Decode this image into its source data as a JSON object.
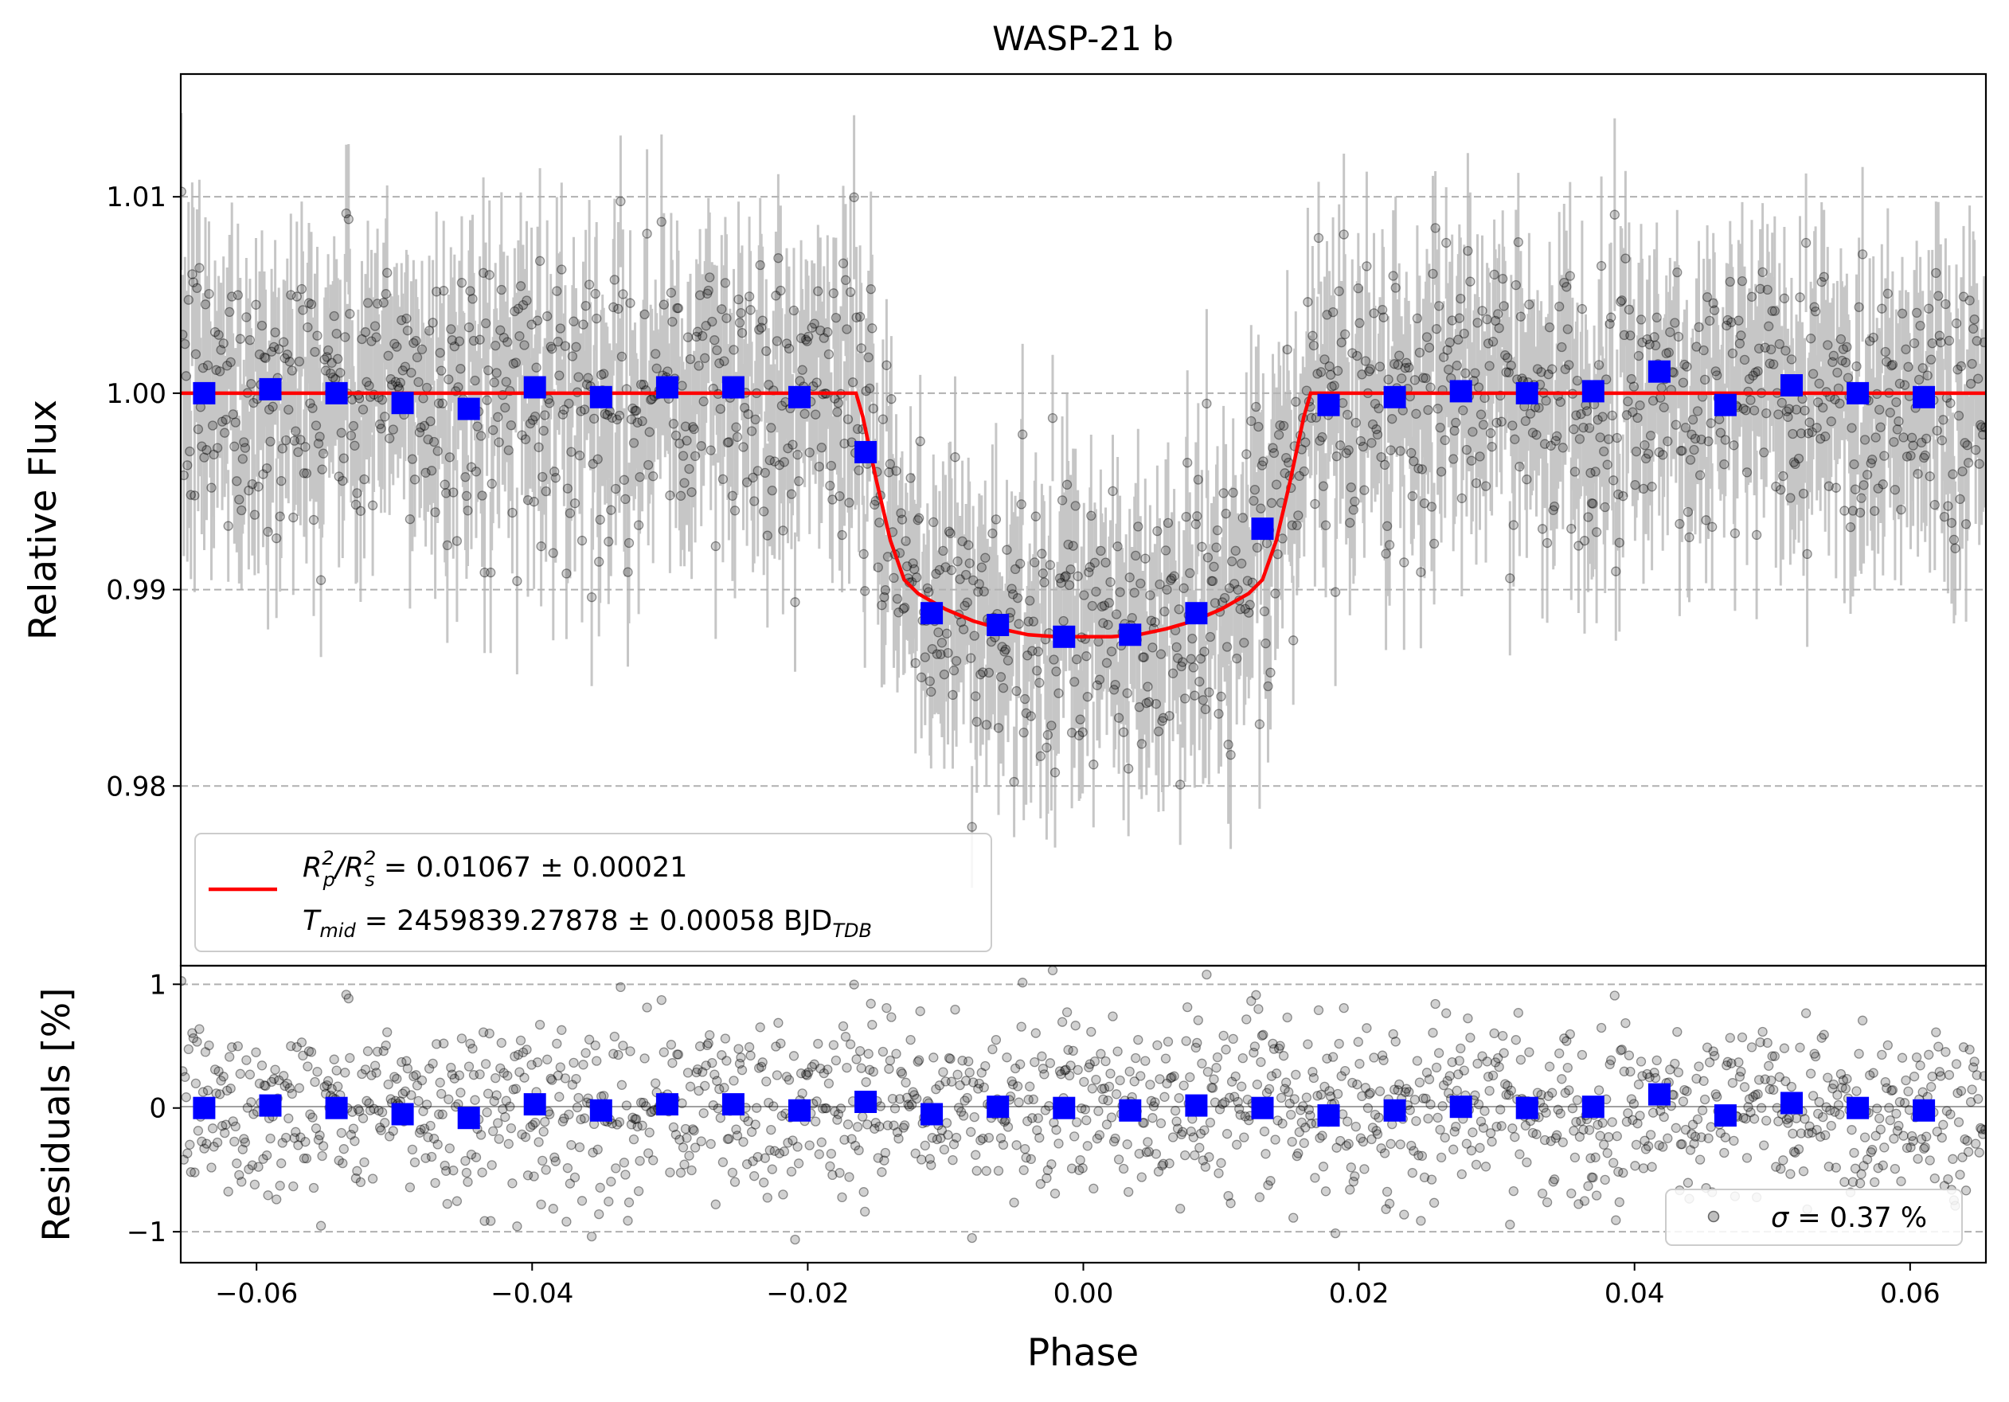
{
  "chart_data": [
    {
      "type": "scatter",
      "panel": "light-curve",
      "title": "WASP-21 b",
      "xlabel": "",
      "ylabel": "Relative Flux",
      "xlim": [
        -0.0655,
        0.0655
      ],
      "ylim": [
        0.97085,
        1.01625
      ],
      "yticks": [
        0.98,
        0.99,
        1.0,
        1.01
      ],
      "ytick_labels": [
        "0.98",
        "0.99",
        "1.00",
        "1.01"
      ],
      "grid": "horizontal dashed",
      "raw_data_note": "about 1500 grey points with 1-sigma error bars, scatter about 0.37% around the model",
      "binned": {
        "x": [
          -0.0638,
          -0.059,
          -0.0542,
          -0.0494,
          -0.0446,
          -0.0398,
          -0.035,
          -0.0302,
          -0.0254,
          -0.0206,
          -0.0158,
          -0.011,
          -0.0062,
          -0.0014,
          0.0034,
          0.0082,
          0.013,
          0.0178,
          0.0226,
          0.0274,
          0.0322,
          0.037,
          0.0418,
          0.0466,
          0.0514,
          0.0562,
          0.061
        ],
        "y": [
          1.0,
          1.0002,
          1.0,
          0.9995,
          0.9992,
          1.0003,
          0.9998,
          1.0003,
          1.0003,
          0.9998,
          0.997,
          0.9888,
          0.9882,
          0.9876,
          0.9877,
          0.9888,
          0.9931,
          0.9994,
          0.9998,
          1.0001,
          1.0,
          1.0001,
          1.0011,
          0.9994,
          1.0004,
          1.0,
          0.9998
        ]
      },
      "model": {
        "x": [
          -0.0655,
          -0.0165,
          -0.016,
          -0.015,
          -0.014,
          -0.013,
          -0.012,
          -0.01,
          -0.008,
          -0.006,
          -0.004,
          -0.002,
          0.0,
          0.002,
          0.004,
          0.006,
          0.008,
          0.01,
          0.012,
          0.013,
          0.014,
          0.015,
          0.016,
          0.0165,
          0.0655
        ],
        "y": [
          1.0,
          1.0,
          0.9988,
          0.9955,
          0.9925,
          0.9905,
          0.9898,
          0.989,
          0.9884,
          0.988,
          0.9877,
          0.9876,
          0.9876,
          0.9876,
          0.9877,
          0.988,
          0.9884,
          0.989,
          0.9898,
          0.9905,
          0.9925,
          0.9955,
          0.9988,
          1.0,
          1.0
        ]
      },
      "legend": {
        "placement": "lower-left",
        "line1_main": "R",
        "line1_sub1": "p",
        "line1_sup1": "2",
        "line1_slash": "/R",
        "line1_sub2": "s",
        "line1_sup2": "2",
        "line1_value": " = 0.01067 ± 0.00021",
        "line2_main": "T",
        "line2_sub": "mid",
        "line2_value": " = 2459839.27878 ± 0.00058 BJD",
        "line2_unit_sub": "TDB"
      },
      "colors": {
        "raw": "#000000",
        "errorbar": "#b3b3b3",
        "binned": "#0000ff",
        "model": "#ff0000",
        "grid": "#b0b0b0"
      }
    },
    {
      "type": "scatter",
      "panel": "residuals",
      "xlabel": "Phase",
      "ylabel": "Residuals [%]",
      "xlim": [
        -0.0655,
        0.0655
      ],
      "ylim": [
        -1.25,
        1.15
      ],
      "xticks": [
        -0.06,
        -0.04,
        -0.02,
        0.0,
        0.02,
        0.04,
        0.06
      ],
      "xtick_labels": [
        "−0.06",
        "−0.04",
        "−0.02",
        "0.00",
        "0.02",
        "0.04",
        "0.06"
      ],
      "yticks": [
        -1,
        0,
        1
      ],
      "ytick_labels": [
        "−1",
        "0",
        "1"
      ],
      "grid": "horizontal dashed",
      "binned": {
        "x": [
          -0.0638,
          -0.059,
          -0.0542,
          -0.0494,
          -0.0446,
          -0.0398,
          -0.035,
          -0.0302,
          -0.0254,
          -0.0206,
          -0.0158,
          -0.011,
          -0.0062,
          -0.0014,
          0.0034,
          0.0082,
          0.013,
          0.0178,
          0.0226,
          0.0274,
          0.0322,
          0.037,
          0.0418,
          0.0466,
          0.0514,
          0.0562,
          0.061
        ],
        "y": [
          0.0,
          0.02,
          0.0,
          -0.05,
          -0.08,
          0.03,
          -0.02,
          0.03,
          0.03,
          -0.02,
          0.05,
          -0.05,
          0.01,
          0.0,
          -0.02,
          0.02,
          0.0,
          -0.06,
          -0.02,
          0.01,
          0.0,
          0.01,
          0.11,
          -0.06,
          0.04,
          0.0,
          -0.02
        ]
      },
      "sigma_percent": 0.37,
      "legend": {
        "placement": "lower-right",
        "symbol": "σ",
        "text": " = 0.37 %"
      },
      "colors": {
        "raw": "#000000",
        "binned": "#0000ff",
        "grid": "#b0b0b0"
      }
    }
  ]
}
